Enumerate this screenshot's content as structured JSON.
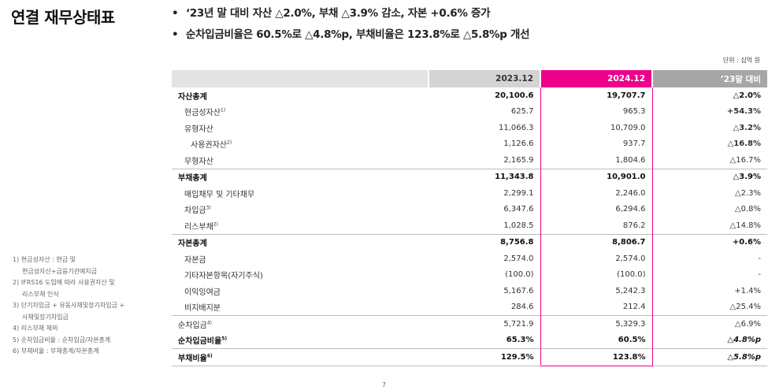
{
  "title": "연결 재무상태표",
  "bullets": [
    "‘23년 말 대비 자산 △2.0%, 부채 △3.9% 감소, 자본 +0.6% 증가",
    "순차입금비율은 60.5%로 △4.8%p, 부채비율은 123.8%로 △5.8%p 개선"
  ],
  "unit": "단위 : 십억 원",
  "table": {
    "headers": [
      "",
      "2023.12",
      "2024.12",
      "’23말 대비"
    ],
    "rows": [
      {
        "label": "자산총계",
        "sup": "",
        "v2023": "20,100.6",
        "v2024": "19,707.7",
        "change": "△2.0%"
      },
      {
        "label": "현금성자산",
        "sup": "1)",
        "v2023": "625.7",
        "v2024": "965.3",
        "change": "+54.3%"
      },
      {
        "label": "유형자산",
        "sup": "",
        "v2023": "11,066.3",
        "v2024": "10,709.0",
        "change": "△3.2%"
      },
      {
        "label": "사용권자산",
        "sup": "2)",
        "v2023": "1,126.6",
        "v2024": "937.7",
        "change": "△16.8%"
      },
      {
        "label": "무형자산",
        "sup": "",
        "v2023": "2,165.9",
        "v2024": "1,804.6",
        "change": "△16.7%"
      },
      {
        "label": "부채총계",
        "sup": "",
        "v2023": "11,343.8",
        "v2024": "10,901.0",
        "change": "△3.9%"
      },
      {
        "label": "매입채무 및 기타채무",
        "sup": "",
        "v2023": "2,299.1",
        "v2024": "2,246.0",
        "change": "△2.3%"
      },
      {
        "label": "차입금",
        "sup": "3)",
        "v2023": "6,347.6",
        "v2024": "6,294.6",
        "change": "△0.8%"
      },
      {
        "label": "리스부채",
        "sup": "2)",
        "v2023": "1,028.5",
        "v2024": "876.2",
        "change": "△14.8%"
      },
      {
        "label": "자본총계",
        "sup": "",
        "v2023": "8,756.8",
        "v2024": "8,806.7",
        "change": "+0.6%"
      },
      {
        "label": "자본금",
        "sup": "",
        "v2023": "2,574.0",
        "v2024": "2,574.0",
        "change": "-"
      },
      {
        "label": "기타자본항목(자기주식)",
        "sup": "",
        "v2023": "(100.0)",
        "v2024": "(100.0)",
        "change": "-"
      },
      {
        "label": "이익잉여금",
        "sup": "",
        "v2023": "5,167.6",
        "v2024": "5,242.3",
        "change": "+1.4%"
      },
      {
        "label": "비지배지분",
        "sup": "",
        "v2023": "284.6",
        "v2024": "212.4",
        "change": "△25.4%"
      },
      {
        "label": "순차입금",
        "sup": "4)",
        "v2023": "5,721.9",
        "v2024": "5,329.3",
        "change": "△6.9%"
      },
      {
        "label": "순차입금비율",
        "sup": "5)",
        "v2023": "65.3%",
        "v2024": "60.5%",
        "change": "△4.8%p"
      },
      {
        "label": "부채비율",
        "sup": "6)",
        "v2023": "129.5%",
        "v2024": "123.8%",
        "change": "△5.8%p"
      }
    ]
  },
  "footnotes": [
    "1) 현금성자산 : 현금 및",
    "현금성자산+금융기관예치금",
    "2) IFRS16 도입에 따라 사용권자산 및",
    "리스부채 인식",
    "3) 단기차입금 + 유동사채및장기차입금 +",
    "사채및장기차입금",
    "4) 리스부채 제외",
    "5) 순차입금비율 : 순차입금/자본총계",
    "6) 부채비율 : 부채총계/자본총계"
  ],
  "page_number": "7",
  "colors": {
    "accent": "#ec008c",
    "header_gray": "#a6a6a6"
  }
}
